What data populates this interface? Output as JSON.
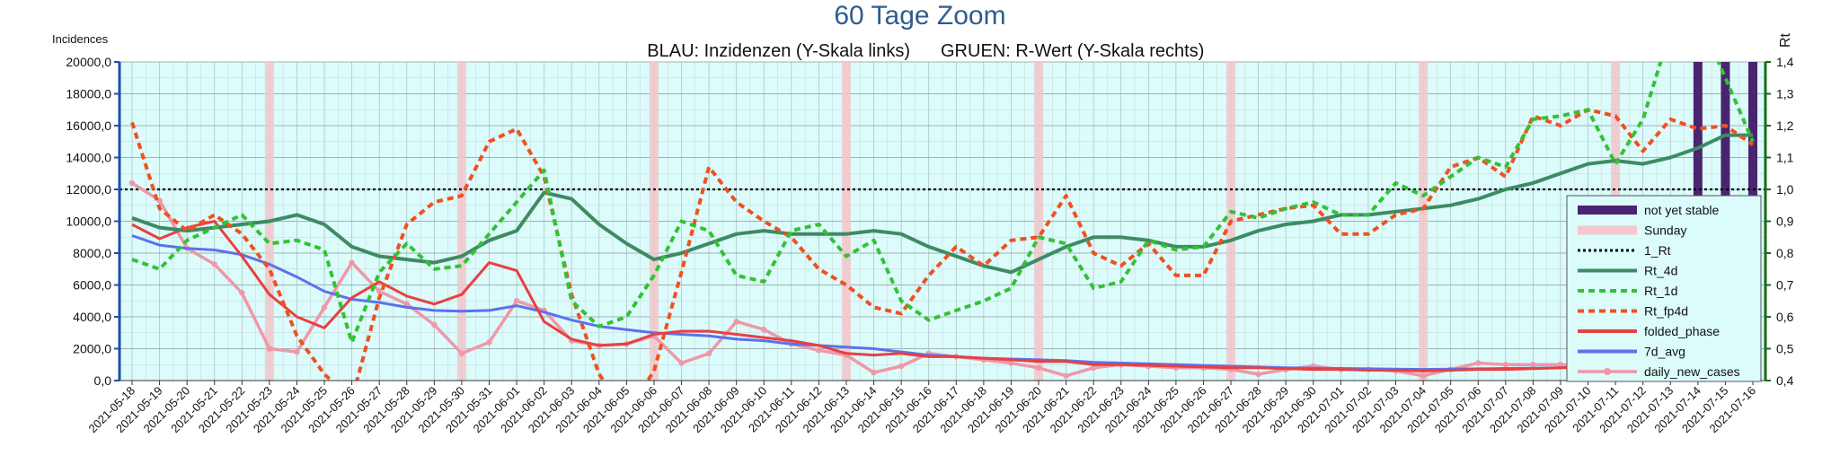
{
  "chart_data": {
    "type": "line",
    "title": "60 Tage Zoom",
    "subtitle_left": "BLAU: Inzidenzen (Y-Skala links)",
    "subtitle_right": "GRUEN: R-Wert (Y-Skala rechts)",
    "ylabel_left": "Incidences",
    "ylabel_right": "Rt",
    "ylim_left": [
      0,
      20000
    ],
    "ylim_right": [
      0.4,
      1.4
    ],
    "yticks_left": [
      "0,0",
      "2000,0",
      "4000,0",
      "6000,0",
      "8000,0",
      "10000,0",
      "12000,0",
      "14000,0",
      "16000,0",
      "18000,0",
      "20000,0"
    ],
    "yticks_right": [
      "0,4",
      "0,5",
      "0,6",
      "0,7",
      "0,8",
      "0,9",
      "1,0",
      "1,1",
      "1,2",
      "1,3",
      "1,4"
    ],
    "grid": true,
    "legend_position": "right",
    "x": [
      "2021-05-18",
      "2021-05-19",
      "2021-05-20",
      "2021-05-21",
      "2021-05-22",
      "2021-05-23",
      "2021-05-24",
      "2021-05-25",
      "2021-05-26",
      "2021-05-27",
      "2021-05-28",
      "2021-05-29",
      "2021-05-30",
      "2021-05-31",
      "2021-06-01",
      "2021-06-02",
      "2021-06-03",
      "2021-06-04",
      "2021-06-05",
      "2021-06-06",
      "2021-06-07",
      "2021-06-08",
      "2021-06-09",
      "2021-06-10",
      "2021-06-11",
      "2021-06-12",
      "2021-06-13",
      "2021-06-14",
      "2021-06-15",
      "2021-06-16",
      "2021-06-17",
      "2021-06-18",
      "2021-06-19",
      "2021-06-20",
      "2021-06-21",
      "2021-06-22",
      "2021-06-23",
      "2021-06-24",
      "2021-06-25",
      "2021-06-26",
      "2021-06-27",
      "2021-06-28",
      "2021-06-29",
      "2021-06-30",
      "2021-07-01",
      "2021-07-02",
      "2021-07-03",
      "2021-07-04",
      "2021-07-05",
      "2021-07-06",
      "2021-07-07",
      "2021-07-08",
      "2021-07-09",
      "2021-07-10",
      "2021-07-11",
      "2021-07-12",
      "2021-07-13",
      "2021-07-14",
      "2021-07-15",
      "2021-07-16"
    ],
    "sundays": [
      "2021-05-23",
      "2021-05-30",
      "2021-06-06",
      "2021-06-13",
      "2021-06-20",
      "2021-06-27",
      "2021-07-04",
      "2021-07-11"
    ],
    "not_yet_stable": [
      "2021-07-14",
      "2021-07-15",
      "2021-07-16"
    ],
    "reference_line": {
      "name": "1_Rt",
      "value": 1.0,
      "axis": "right"
    },
    "series": [
      {
        "name": "Rt_4d",
        "axis": "right",
        "color": "#3d8b63",
        "style": "solid",
        "values": [
          0.91,
          0.88,
          0.87,
          0.88,
          0.89,
          0.9,
          0.92,
          0.89,
          0.82,
          0.79,
          0.78,
          0.77,
          0.79,
          0.84,
          0.87,
          0.99,
          0.97,
          0.89,
          0.83,
          0.78,
          0.8,
          0.83,
          0.86,
          0.87,
          0.86,
          0.86,
          0.86,
          0.87,
          0.86,
          0.82,
          0.79,
          0.76,
          0.74,
          0.78,
          0.82,
          0.85,
          0.85,
          0.84,
          0.82,
          0.82,
          0.84,
          0.87,
          0.89,
          0.9,
          0.92,
          0.92,
          0.93,
          0.94,
          0.95,
          0.97,
          1.0,
          1.02,
          1.05,
          1.08,
          1.09,
          1.08,
          1.1,
          1.13,
          1.17,
          1.17
        ]
      },
      {
        "name": "Rt_1d",
        "axis": "right",
        "color": "#33c233",
        "style": "dashed",
        "values": [
          0.78,
          0.75,
          0.84,
          0.88,
          0.92,
          0.83,
          0.84,
          0.81,
          0.52,
          0.74,
          0.83,
          0.75,
          0.76,
          0.86,
          0.96,
          1.06,
          0.65,
          0.57,
          0.6,
          0.73,
          0.9,
          0.87,
          0.73,
          0.71,
          0.87,
          0.89,
          0.79,
          0.84,
          0.65,
          0.59,
          0.62,
          0.65,
          0.69,
          0.85,
          0.83,
          0.69,
          0.71,
          0.84,
          0.81,
          0.82,
          0.93,
          0.91,
          0.94,
          0.96,
          0.92,
          0.92,
          1.02,
          0.98,
          1.04,
          1.1,
          1.07,
          1.22,
          1.23,
          1.25,
          1.08,
          1.22,
          1.5,
          1.55,
          1.35,
          1.15
        ]
      },
      {
        "name": "Rt_fp4d",
        "axis": "right",
        "color": "#f05020",
        "style": "dashed",
        "values": [
          1.21,
          0.94,
          0.87,
          0.92,
          0.86,
          0.75,
          0.54,
          0.42,
          0.34,
          0.66,
          0.89,
          0.96,
          0.98,
          1.15,
          1.19,
          1.04,
          0.67,
          0.42,
          0.3,
          0.43,
          0.74,
          1.07,
          0.96,
          0.9,
          0.85,
          0.75,
          0.7,
          0.63,
          0.61,
          0.73,
          0.82,
          0.76,
          0.84,
          0.85,
          0.98,
          0.8,
          0.76,
          0.83,
          0.73,
          0.73,
          0.9,
          0.92,
          0.94,
          0.95,
          0.86,
          0.86,
          0.92,
          0.94,
          1.07,
          1.1,
          1.04,
          1.23,
          1.2,
          1.25,
          1.23,
          1.12,
          1.22,
          1.19,
          1.2,
          1.14
        ]
      },
      {
        "name": "folded_phase",
        "axis": "left",
        "color": "#e84040",
        "style": "solid",
        "values": [
          9800,
          8900,
          9600,
          10000,
          7800,
          5400,
          4000,
          3300,
          5200,
          6200,
          5300,
          4800,
          5400,
          7400,
          6900,
          3700,
          2600,
          2200,
          2300,
          2900,
          3100,
          3100,
          2900,
          2700,
          2500,
          2200,
          1700,
          1600,
          1700,
          1500,
          1500,
          1400,
          1300,
          1200,
          1200,
          1000,
          1000,
          950,
          900,
          850,
          800,
          800,
          750,
          700,
          700,
          650,
          650,
          600,
          650,
          700,
          700,
          750,
          800,
          850,
          800,
          900,
          1000,
          1150,
          1250,
          1300
        ]
      },
      {
        "name": "7d_avg",
        "axis": "left",
        "color": "#5a72ee",
        "style": "solid",
        "values": [
          9100,
          8500,
          8300,
          8200,
          7900,
          7300,
          6500,
          5600,
          5100,
          4900,
          4600,
          4400,
          4350,
          4400,
          4700,
          4300,
          3800,
          3400,
          3200,
          3000,
          2900,
          2800,
          2600,
          2500,
          2300,
          2200,
          2100,
          2000,
          1800,
          1600,
          1500,
          1400,
          1350,
          1300,
          1250,
          1150,
          1100,
          1050,
          1000,
          950,
          900,
          850,
          800,
          780,
          760,
          740,
          720,
          700,
          720,
          740,
          760,
          780,
          800,
          820,
          850,
          900,
          950,
          1050,
          1150,
          1250
        ]
      },
      {
        "name": "daily_new_cases",
        "axis": "left",
        "color": "#ee98a8",
        "style": "solid-marker",
        "values": [
          12400,
          11300,
          8300,
          7300,
          5500,
          2000,
          1800,
          4600,
          7400,
          5600,
          4800,
          3500,
          1700,
          2400,
          5000,
          4400,
          2500,
          2200,
          2300,
          2800,
          1100,
          1700,
          3700,
          3200,
          2300,
          1900,
          1600,
          500,
          900,
          1700,
          1500,
          1300,
          1100,
          800,
          300,
          800,
          1000,
          900,
          800,
          800,
          700,
          400,
          700,
          900,
          700,
          700,
          600,
          300,
          700,
          1100,
          1000,
          1000,
          1000,
          900,
          400,
          800,
          1800,
          1600,
          1400,
          1200
        ]
      },
      {
        "name": "not yet stable",
        "axis": "left",
        "color": "#4a2470",
        "style": "bar"
      },
      {
        "name": "Sunday",
        "axis": "left",
        "color": "#f4c8cc",
        "style": "bar"
      }
    ]
  }
}
